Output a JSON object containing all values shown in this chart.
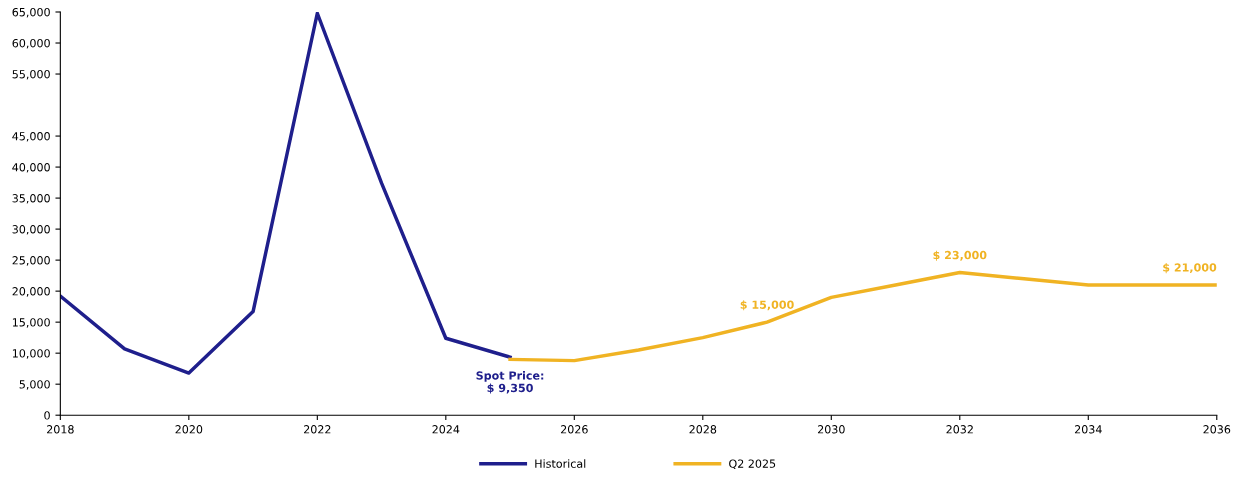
{
  "chart_data": {
    "type": "line",
    "xlim": [
      2018,
      2036
    ],
    "xticks": [
      2018,
      2020,
      2022,
      2024,
      2026,
      2028,
      2030,
      2032,
      2034,
      2036
    ],
    "ylim": [
      0,
      65000
    ],
    "yticks": [
      {
        "value": 0,
        "label": "0"
      },
      {
        "value": 5000,
        "label": "5,000"
      },
      {
        "value": 10000,
        "label": "10,000"
      },
      {
        "value": 15000,
        "label": "15,000"
      },
      {
        "value": 20000,
        "label": "20,000"
      },
      {
        "value": 25000,
        "label": "25,000"
      },
      {
        "value": 30000,
        "label": "30,000"
      },
      {
        "value": 35000,
        "label": "35,000"
      },
      {
        "value": 40000,
        "label": "40,000"
      },
      {
        "value": 45000,
        "label": "45,000"
      },
      {
        "value": 55000,
        "label": "55,000"
      },
      {
        "value": 60000,
        "label": "60,000"
      },
      {
        "value": 65000,
        "label": "65,000"
      }
    ],
    "series": [
      {
        "name": "Historical",
        "color": "#1f1f8c",
        "x": [
          2018,
          2019,
          2020,
          2021,
          2022,
          2023,
          2024,
          2025
        ],
        "values": [
          19200,
          10700,
          6800,
          16700,
          64800,
          37400,
          12400,
          9350
        ]
      },
      {
        "name": "Q2 2025",
        "color": "#f0b323",
        "x": [
          2025,
          2026,
          2027,
          2028,
          2029,
          2030,
          2031,
          2032,
          2033,
          2034,
          2035,
          2036
        ],
        "values": [
          9000,
          8800,
          10500,
          12500,
          15000,
          19000,
          21000,
          23000,
          22000,
          21000,
          21000,
          21000
        ]
      }
    ],
    "annotations": [
      {
        "text": "Spot Price:\n$ 9,350",
        "x": 2025,
        "y": 9350
      },
      {
        "text": "$ 15,000",
        "x": 2029,
        "y": 15000
      },
      {
        "text": "$ 23,000",
        "x": 2032,
        "y": 23000
      },
      {
        "text": "$ 21,000",
        "x": 2036,
        "y": 21000
      }
    ],
    "grid": false,
    "legend": "bottom",
    "marker": "none",
    "line_style": "solid"
  }
}
